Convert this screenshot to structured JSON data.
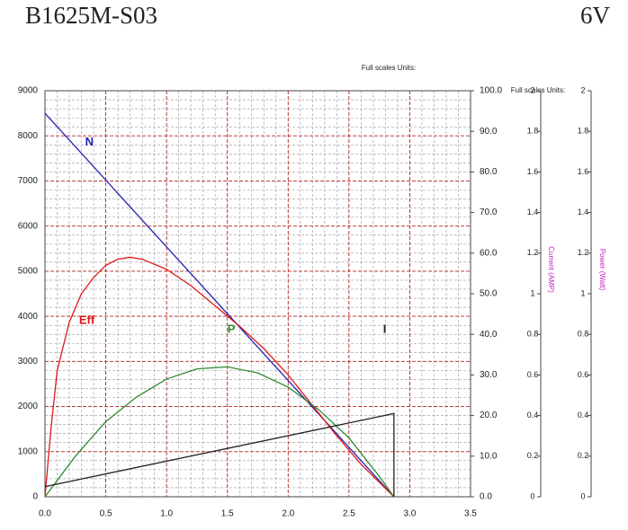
{
  "chart_data": {
    "type": "line",
    "title": "B1625M-S03",
    "subtitle": "6V",
    "notes": [
      "Full scales Units:",
      "Full scales Units:"
    ],
    "xlim": [
      0,
      3.5
    ],
    "xticks": [
      {
        "value": 0,
        "label": "0.0"
      },
      {
        "value": 0.5,
        "label": "0.5"
      },
      {
        "value": 1,
        "label": "1.0"
      },
      {
        "value": 1.5,
        "label": "1.5"
      },
      {
        "value": 2,
        "label": "2.0"
      },
      {
        "value": 2.5,
        "label": "2.5"
      },
      {
        "value": 3,
        "label": "3.0"
      },
      {
        "value": 3.5,
        "label": "3.5"
      }
    ],
    "ylim": [
      0,
      9000
    ],
    "yticks": [
      0,
      1000,
      2000,
      3000,
      4000,
      5000,
      6000,
      7000,
      8000,
      9000
    ],
    "y2lim": [
      0,
      100
    ],
    "y2ticks": [
      {
        "value": 0,
        "label": "0.0"
      },
      {
        "value": 10,
        "label": "10.0"
      },
      {
        "value": 20,
        "label": "20.0"
      },
      {
        "value": 30,
        "label": "30.0"
      },
      {
        "value": 40,
        "label": "40.0"
      },
      {
        "value": 50,
        "label": "50.0"
      },
      {
        "value": 60,
        "label": "60.0"
      },
      {
        "value": 70,
        "label": "70.0"
      },
      {
        "value": 80,
        "label": "80.0"
      },
      {
        "value": 90,
        "label": "90.0"
      },
      {
        "value": 100,
        "label": "100.0"
      }
    ],
    "y3label": "Current (AMP)",
    "y3lim": [
      0,
      2
    ],
    "y3ticks": [
      0,
      0.2,
      0.4,
      0.6,
      0.8,
      1,
      1.2,
      1.4,
      1.6,
      1.8,
      2
    ],
    "y4label": "Power (Watt)",
    "y4lim": [
      0,
      2
    ],
    "y4ticks": [
      0,
      0.2,
      0.4,
      0.6,
      0.8,
      1,
      1.2,
      1.4,
      1.6,
      1.8,
      2
    ],
    "grid": true,
    "minor_grid": true,
    "series": [
      {
        "name": "N",
        "color": "#2323b4",
        "x": [
          0,
          2.87
        ],
        "values": [
          8500,
          0
        ]
      },
      {
        "name": "Eff",
        "color": "#e01818",
        "axis": "y2",
        "x": [
          0,
          0.05,
          0.1,
          0.2,
          0.3,
          0.4,
          0.5,
          0.6,
          0.7,
          0.8,
          1.0,
          1.2,
          1.4,
          1.6,
          1.8,
          2.0,
          2.2,
          2.4,
          2.6,
          2.87
        ],
        "values": [
          0,
          17,
          31,
          43,
          50,
          54,
          57,
          58.5,
          59,
          58.5,
          56,
          52,
          47,
          42,
          36.5,
          30,
          22.5,
          15,
          8,
          0
        ]
      },
      {
        "name": "P",
        "color": "#2e8b2e",
        "axis": "y4",
        "x": [
          0,
          0.25,
          0.5,
          0.75,
          1.0,
          1.25,
          1.5,
          1.75,
          2.0,
          2.25,
          2.5,
          2.75,
          2.87
        ],
        "values": [
          0,
          0.2,
          0.37,
          0.49,
          0.58,
          0.63,
          0.64,
          0.61,
          0.54,
          0.43,
          0.29,
          0.1,
          0
        ]
      },
      {
        "name": "I",
        "color": "#222222",
        "axis": "y3",
        "x": [
          0,
          2.87,
          2.87
        ],
        "values": [
          0.05,
          0.41,
          0
        ]
      }
    ]
  }
}
